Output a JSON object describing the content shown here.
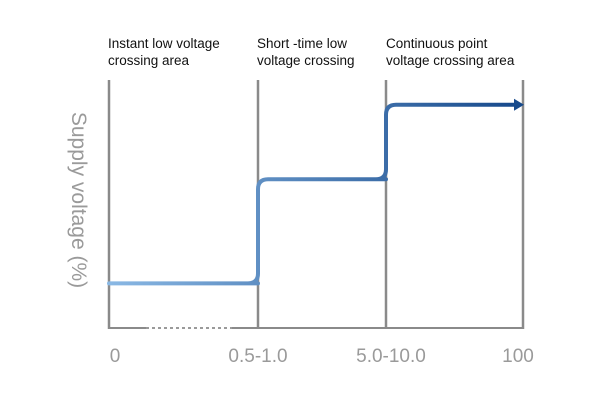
{
  "chart_data": {
    "type": "line",
    "title": "",
    "xlabel": "",
    "ylabel": "Supply voltage (%)",
    "grid": false,
    "legend": "none",
    "x_ticks": [
      "0",
      "0.5-1.0",
      "5.0-10.0",
      "100"
    ],
    "region_labels": [
      [
        "Instant low voltage",
        "crossing area"
      ],
      [
        "Short -time low",
        "voltage crossing"
      ],
      [
        "Continuous point",
        "voltage crossing area"
      ]
    ],
    "series": [
      {
        "values": [
          {
            "x": "0",
            "level": 0.18
          },
          {
            "x": "0.5-1.0",
            "level": 0.18
          },
          {
            "x": "0.5-1.0",
            "level": 0.6
          },
          {
            "x": "5.0-10.0",
            "level": 0.6
          },
          {
            "x": "5.0-10.0",
            "level": 0.9
          },
          {
            "x": "100",
            "level": 0.9
          }
        ]
      }
    ],
    "colors": {
      "line_start": "#8ab8e4",
      "line_end": "#174a8c",
      "axis": "#8a8a8a",
      "dotted": "#9a9a9a",
      "labels": "#9a9a9a",
      "region_text": "#111111"
    }
  }
}
